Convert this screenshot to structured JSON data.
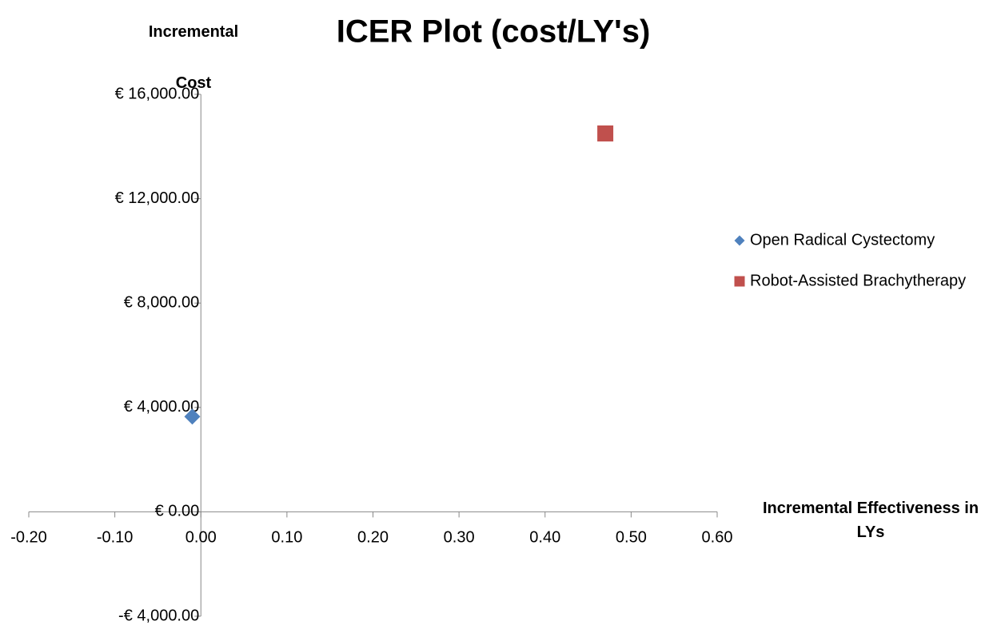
{
  "chart_data": {
    "type": "scatter",
    "title": "ICER Plot (cost/LY's)",
    "x_label": "Incremental Effectiveness in LYs",
    "y_label": "Incremental Cost",
    "series": [
      {
        "name": "Open Radical Cystectomy",
        "color": "#4f81bd",
        "marker": "diamond",
        "x": [
          -0.01
        ],
        "values": [
          3650
        ]
      },
      {
        "name": "Robot-Assisted Brachytherapy",
        "color": "#c0504d",
        "marker": "square",
        "x": [
          0.47
        ],
        "values": [
          14500
        ]
      }
    ],
    "xlim": [
      -0.2,
      0.6
    ],
    "xticks": [
      {
        "value": -0.2,
        "label": "-0.20"
      },
      {
        "value": -0.1,
        "label": "-0.10"
      },
      {
        "value": 0,
        "label": "0.00"
      },
      {
        "value": 0.1,
        "label": "0.10"
      },
      {
        "value": 0.2,
        "label": "0.20"
      },
      {
        "value": 0.3,
        "label": "0.30"
      },
      {
        "value": 0.4,
        "label": "0.40"
      },
      {
        "value": 0.5,
        "label": "0.50"
      },
      {
        "value": 0.6,
        "label": "0.60"
      }
    ],
    "ylim": [
      -4000,
      16000
    ],
    "yticks": [
      {
        "value": -4000,
        "label": "-€ 4,000.00"
      },
      {
        "value": 0,
        "label": "€ 0.00"
      },
      {
        "value": 4000,
        "label": "€ 4,000.00"
      },
      {
        "value": 8000,
        "label": "€ 8,000.00"
      },
      {
        "value": 12000,
        "label": "€ 12,000.00"
      },
      {
        "value": 16000,
        "label": "€ 16,000.00"
      }
    ],
    "legend": "right",
    "grid": false
  }
}
